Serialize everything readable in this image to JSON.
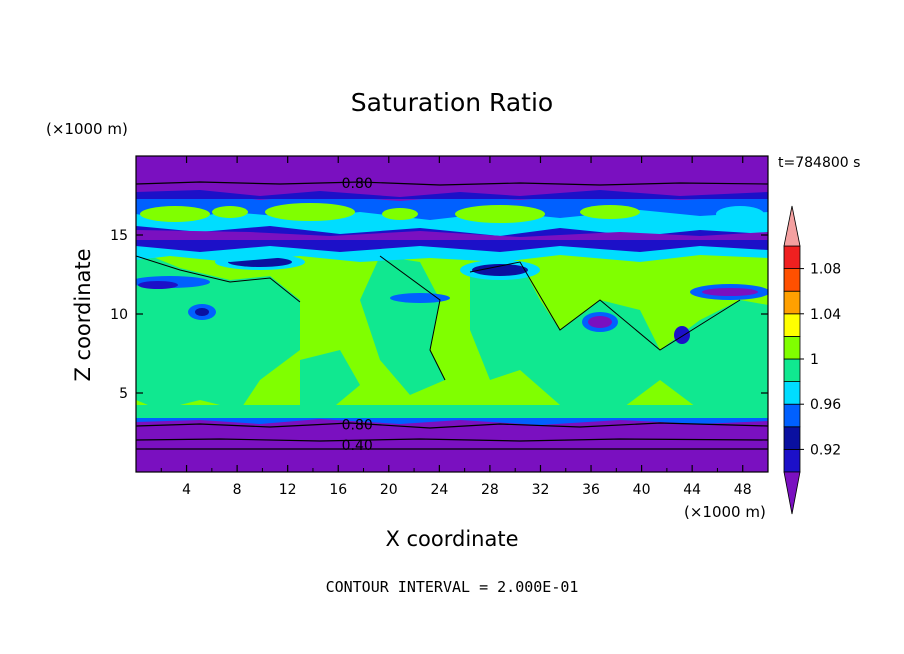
{
  "chart_data": {
    "type": "heatmap",
    "title": "Saturation Ratio",
    "xlabel": "X coordinate",
    "ylabel": "Z coordinate",
    "x_unit": "(×1000 m)",
    "y_unit": "(×1000 m)",
    "time_label": "t=784800 s",
    "footnote": "CONTOUR INTERVAL = 2.000E-01",
    "xlim": [
      0,
      50
    ],
    "ylim": [
      0,
      20
    ],
    "x_ticks": [
      4,
      8,
      12,
      16,
      20,
      24,
      28,
      32,
      36,
      40,
      44,
      48
    ],
    "x_tick_labels": [
      "4",
      "8",
      "12",
      "16",
      "20",
      "24",
      "28",
      "32",
      "36",
      "40",
      "44",
      "48"
    ],
    "y_ticks": [
      5,
      10,
      15
    ],
    "y_tick_labels": [
      "5",
      "10",
      "15"
    ],
    "contour_labels": [
      {
        "text": "0.80",
        "x": 17.5,
        "z": 18.3
      },
      {
        "text": "0.80",
        "x": 17.5,
        "z": 3.0
      },
      {
        "text": "0.40",
        "x": 17.5,
        "z": 1.7
      }
    ],
    "colorbar": {
      "levels": [
        0.92,
        0.94,
        0.96,
        0.98,
        1.0,
        1.02,
        1.04,
        1.06,
        1.08,
        1.1
      ],
      "colors": [
        "#7a10c0",
        "#1c10c8",
        "#0a10a0",
        "#0060ff",
        "#00ddff",
        "#10e890",
        "#80ff00",
        "#ffff00",
        "#ffa000",
        "#ff5000",
        "#f02020",
        "#f4a0a0"
      ],
      "tick_labels": [
        "0.92",
        "0.96",
        "1",
        "1.04",
        "1.08"
      ]
    },
    "regions": [
      {
        "z": [
          0,
          3.4
        ],
        "value": "purple"
      },
      {
        "z": [
          3.4,
          14.5
        ],
        "value": "green / light green"
      },
      {
        "z": [
          14.5,
          17.3
        ],
        "value": "blue / cyan band"
      },
      {
        "z": [
          17.3,
          20
        ],
        "value": "purple"
      }
    ]
  }
}
